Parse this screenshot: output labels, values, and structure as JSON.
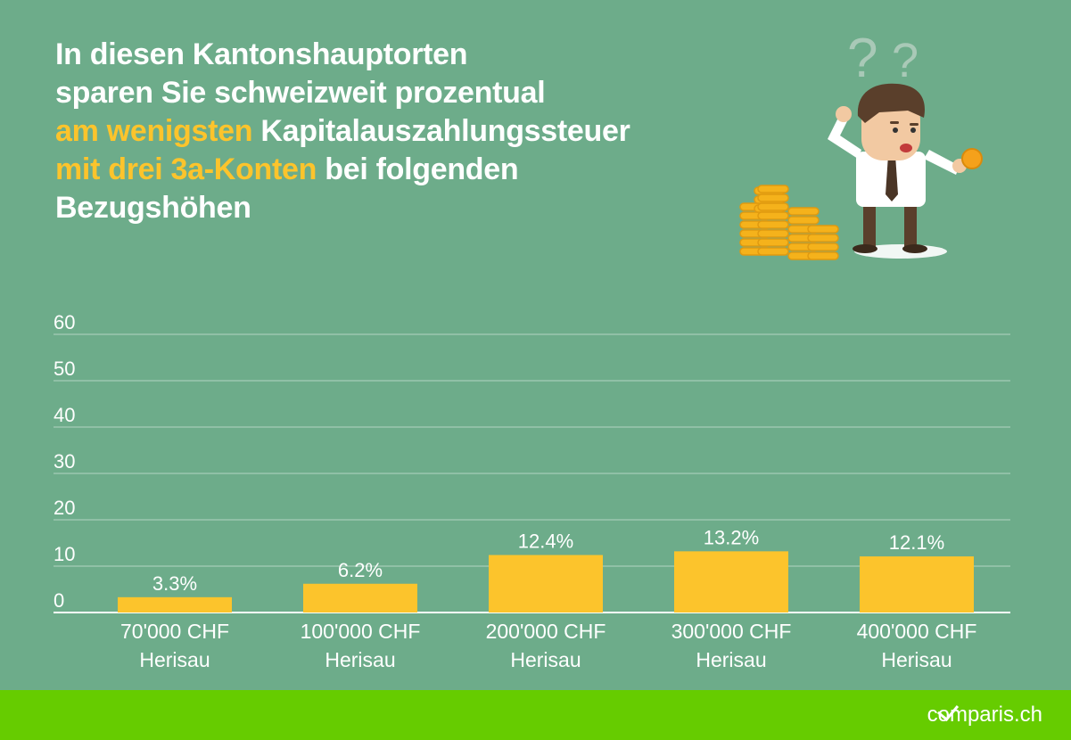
{
  "header": {
    "title_line1": "In diesen Kantonshauptorten",
    "title_line2": "sparen Sie schweizweit prozentual",
    "title_hl1": "am wenigsten",
    "title_line3": " Kapitalauszahlungssteuer",
    "title_hl2": "mit drei 3a-Konten",
    "title_line4": " bei folgenden",
    "title_line5": "Bezugshöhen",
    "highlight_color": "#fcc42c",
    "text_color": "#ffffff"
  },
  "illustration": {
    "icon": "confused-man-with-coins-icon",
    "question_mark": "?"
  },
  "chart_data": {
    "type": "bar",
    "title": "",
    "xlabel": "",
    "ylabel": "",
    "ylim": [
      0,
      60
    ],
    "yticks": [
      0,
      10,
      20,
      30,
      40,
      50,
      60
    ],
    "grid": true,
    "categories": [
      [
        "70'000 CHF",
        "Herisau"
      ],
      [
        "100'000 CHF",
        "Herisau"
      ],
      [
        "200'000 CHF",
        "Herisau"
      ],
      [
        "300'000 CHF",
        "Herisau"
      ],
      [
        "400'000 CHF",
        "Herisau"
      ]
    ],
    "values": [
      3.3,
      6.2,
      12.4,
      13.2,
      12.1
    ],
    "value_labels": [
      "3.3%",
      "6.2%",
      "12.4%",
      "13.2%",
      "12.1%"
    ],
    "bar_color": "#fcc42c",
    "background_color": "#6dac8a"
  },
  "footer": {
    "brand_before": "c",
    "brand_o": "o",
    "brand_after": "mparis.ch",
    "background_color": "#66cc00"
  }
}
